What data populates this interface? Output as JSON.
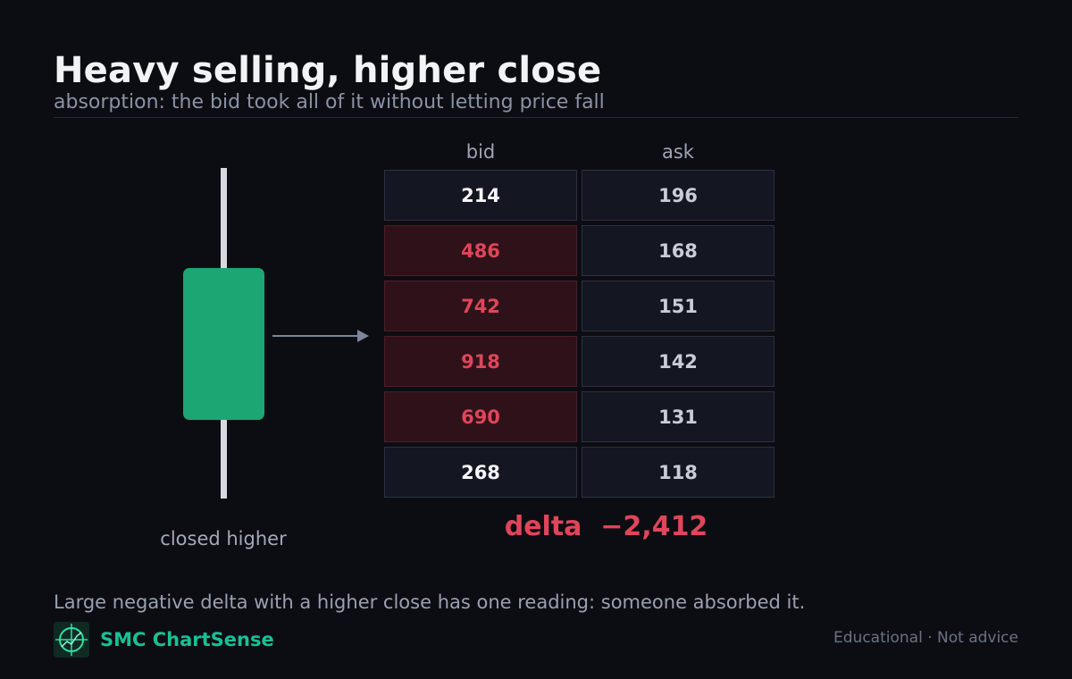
{
  "header": {
    "title": "Heavy selling, higher close",
    "subtitle": "absorption: the bid took all of it without letting price fall"
  },
  "chart_data": {
    "type": "table",
    "columns": [
      "bid",
      "ask"
    ],
    "rows": [
      {
        "bid": "214",
        "ask": "196",
        "bid_heavy": false
      },
      {
        "bid": "486",
        "ask": "168",
        "bid_heavy": true
      },
      {
        "bid": "742",
        "ask": "151",
        "bid_heavy": true
      },
      {
        "bid": "918",
        "ask": "142",
        "bid_heavy": true
      },
      {
        "bid": "690",
        "ask": "131",
        "bid_heavy": true
      },
      {
        "bid": "268",
        "ask": "118",
        "bid_heavy": false
      }
    ],
    "delta_label": "delta",
    "delta_value": "−2,412",
    "candle": {
      "direction": "up",
      "caption": "closed higher",
      "color": "#1ca673"
    }
  },
  "footer": {
    "note": "Large negative delta with a higher close has one reading: someone absorbed it.",
    "brand": "SMC ChartSense",
    "disclaimer": "Educational · Not advice"
  },
  "colors": {
    "accent": "#19c095",
    "heavy_bid": "#e0455a",
    "candle_up": "#1ca673"
  }
}
